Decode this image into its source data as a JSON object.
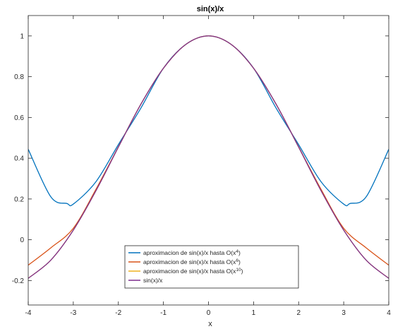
{
  "chart_data": {
    "type": "line",
    "title": "sin(x)/x",
    "xlabel": "x",
    "ylabel": "",
    "xlim": [
      -4,
      4
    ],
    "ylim": [
      -0.32,
      1.1
    ],
    "xticks": [
      -4,
      -3,
      -2,
      -1,
      0,
      1,
      2,
      3,
      4
    ],
    "yticks": [
      -0.2,
      0,
      0.2,
      0.4,
      0.6,
      0.8,
      1
    ],
    "xtick_labels": [
      "-4",
      "-3",
      "-2",
      "-1",
      "0",
      "1",
      "2",
      "3",
      "4"
    ],
    "ytick_labels": [
      "-0.2",
      "0",
      "0.2",
      "0.4",
      "0.6",
      "0.8",
      "1"
    ],
    "grid": false,
    "legend_position": "bottom-center",
    "series": [
      {
        "name": "aproximacion de sin(x)/x hasta O(x^4)",
        "legend_base": "aproximacion de sin(x)/x hasta O(x",
        "legend_sup": "4",
        "legend_tail": ")",
        "color": "#0072BD",
        "x": [
          -4,
          -3.5,
          -3.14,
          -3,
          -2.5,
          -2,
          -1.5,
          -1,
          -0.5,
          0,
          0.5,
          1,
          1.5,
          2,
          2.5,
          3,
          3.14,
          3.5,
          4
        ],
        "y": [
          0.444,
          0.211,
          0.178,
          0.175,
          0.284,
          0.4667,
          0.6461,
          0.8417,
          0.9589,
          1,
          0.9589,
          0.8417,
          0.6461,
          0.4667,
          0.284,
          0.175,
          0.178,
          0.211,
          0.444
        ]
      },
      {
        "name": "aproximacion de sin(x)/x hasta O(x^6)",
        "legend_base": "aproximacion de sin(x)/x hasta O(x",
        "legend_sup": "6",
        "legend_tail": ")",
        "color": "#D95319",
        "x": [
          -4,
          -3.5,
          -3,
          -2.5,
          -2,
          -1.5,
          -1,
          -0.5,
          0,
          0.5,
          1,
          1.5,
          2,
          2.5,
          3,
          3.5,
          4
        ],
        "y": [
          -0.1245,
          -0.0398,
          0.0563,
          0.2464,
          0.4561,
          0.6649,
          0.8415,
          0.9589,
          1,
          0.9589,
          0.8415,
          0.6649,
          0.4561,
          0.2464,
          0.0563,
          -0.0398,
          -0.1245
        ]
      },
      {
        "name": "aproximacion de sin(x)/x hasta O(x^10)",
        "legend_base": "aproximacion de sin(x)/x hasta O(x",
        "legend_sup": "10",
        "legend_tail": ")",
        "color": "#EDB120",
        "x": [
          -4,
          -3.5,
          -3,
          -2.5,
          -2,
          -1.5,
          -1,
          -0.5,
          0,
          0.5,
          1,
          1.5,
          2,
          2.5,
          3,
          3.5,
          4
        ],
        "y": [
          -0.1886,
          -0.1002,
          0.0471,
          0.2394,
          0.4546,
          0.665,
          0.8415,
          0.9589,
          1,
          0.9589,
          0.8415,
          0.665,
          0.4546,
          0.2394,
          0.0471,
          -0.1002,
          -0.1886
        ]
      },
      {
        "name": "sin(x)/x",
        "legend_base": "sin(x)/x",
        "legend_sup": "",
        "legend_tail": "",
        "color": "#7E2F8E",
        "x": [
          -4,
          -3.5,
          -3,
          -2.5,
          -2,
          -1.5,
          -1,
          -0.5,
          0,
          0.5,
          1,
          1.5,
          2,
          2.5,
          3,
          3.5,
          4
        ],
        "y": [
          -0.1892,
          -0.1002,
          0.047,
          0.2394,
          0.4546,
          0.665,
          0.8415,
          0.9589,
          1,
          0.9589,
          0.8415,
          0.665,
          0.4546,
          0.2394,
          0.047,
          -0.1002,
          -0.1892
        ]
      }
    ]
  }
}
